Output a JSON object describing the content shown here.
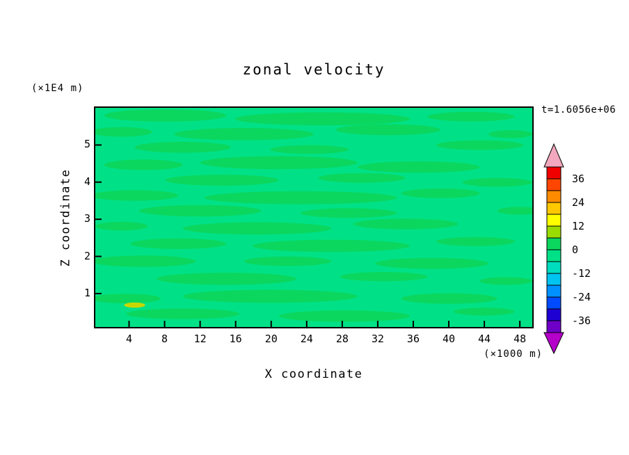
{
  "chart_data": {
    "type": "heatmap",
    "title": "zonal velocity",
    "time_label": "t=1.6056e+06",
    "xlabel": "X coordinate",
    "ylabel": "Z coordinate",
    "x_units": "(×1000 m)",
    "z_units": "(×1E4 m)",
    "x_ticks": [
      4,
      8,
      12,
      16,
      20,
      24,
      28,
      32,
      36,
      40,
      44,
      48
    ],
    "x_range": [
      0.2,
      49.4
    ],
    "z_ticks": [
      1,
      2,
      3,
      4,
      5
    ],
    "z_range": [
      0.1,
      6.0
    ],
    "field": {
      "summary": "Zonal velocity is near zero over the whole domain: broad background in the -6..0 band with elongated horizontal streaks in the 0..6 band, plus one small patch of roughly 12-18 near x=5 (×1000 m), z=0.6 (×1E4 m).",
      "base_band": [
        -6,
        0
      ],
      "base_color": "#00E187",
      "streak_band": [
        0,
        6
      ],
      "streak_color": "#0BD75F",
      "streaks": [
        [
          0.16,
          0.035,
          0.14,
          0.028
        ],
        [
          0.52,
          0.05,
          0.2,
          0.03
        ],
        [
          0.86,
          0.04,
          0.1,
          0.022
        ],
        [
          0.06,
          0.11,
          0.07,
          0.022
        ],
        [
          0.34,
          0.12,
          0.16,
          0.028
        ],
        [
          0.67,
          0.1,
          0.12,
          0.025
        ],
        [
          0.95,
          0.12,
          0.05,
          0.018
        ],
        [
          0.2,
          0.18,
          0.11,
          0.025
        ],
        [
          0.49,
          0.19,
          0.09,
          0.02
        ],
        [
          0.88,
          0.17,
          0.1,
          0.022
        ],
        [
          0.11,
          0.26,
          0.09,
          0.024
        ],
        [
          0.42,
          0.25,
          0.18,
          0.03
        ],
        [
          0.74,
          0.27,
          0.14,
          0.026
        ],
        [
          0.29,
          0.33,
          0.13,
          0.025
        ],
        [
          0.61,
          0.32,
          0.1,
          0.022
        ],
        [
          0.92,
          0.34,
          0.08,
          0.02
        ],
        [
          0.09,
          0.4,
          0.1,
          0.024
        ],
        [
          0.47,
          0.41,
          0.22,
          0.03
        ],
        [
          0.79,
          0.39,
          0.09,
          0.022
        ],
        [
          0.24,
          0.47,
          0.14,
          0.026
        ],
        [
          0.58,
          0.48,
          0.11,
          0.022
        ],
        [
          0.97,
          0.47,
          0.05,
          0.018
        ],
        [
          0.06,
          0.54,
          0.06,
          0.02
        ],
        [
          0.37,
          0.55,
          0.17,
          0.028
        ],
        [
          0.71,
          0.53,
          0.12,
          0.024
        ],
        [
          0.19,
          0.62,
          0.11,
          0.024
        ],
        [
          0.54,
          0.63,
          0.18,
          0.028
        ],
        [
          0.87,
          0.61,
          0.09,
          0.021
        ],
        [
          0.11,
          0.7,
          0.12,
          0.026
        ],
        [
          0.44,
          0.7,
          0.1,
          0.022
        ],
        [
          0.77,
          0.71,
          0.13,
          0.025
        ],
        [
          0.3,
          0.78,
          0.16,
          0.028
        ],
        [
          0.66,
          0.77,
          0.1,
          0.021
        ],
        [
          0.94,
          0.79,
          0.06,
          0.018
        ],
        [
          0.07,
          0.87,
          0.08,
          0.022
        ],
        [
          0.4,
          0.86,
          0.2,
          0.03
        ],
        [
          0.81,
          0.87,
          0.11,
          0.024
        ],
        [
          0.2,
          0.94,
          0.13,
          0.024
        ],
        [
          0.57,
          0.95,
          0.15,
          0.026
        ],
        [
          0.89,
          0.93,
          0.07,
          0.018
        ]
      ],
      "spots": [
        [
          0.09,
          0.9,
          0.024,
          0.012,
          "#C8D700"
        ]
      ]
    },
    "colorbar": {
      "labels": [
        36,
        24,
        12,
        0,
        -12,
        -24,
        -36
      ],
      "level_step": 6,
      "min": -42,
      "max": 42,
      "cells_top_to_bottom": [
        {
          "range": [
            36,
            42
          ],
          "color": "#F00000"
        },
        {
          "range": [
            30,
            36
          ],
          "color": "#FF4600"
        },
        {
          "range": [
            24,
            30
          ],
          "color": "#FF8C00"
        },
        {
          "range": [
            18,
            24
          ],
          "color": "#FFC800"
        },
        {
          "range": [
            12,
            18
          ],
          "color": "#FFFF00"
        },
        {
          "range": [
            6,
            12
          ],
          "color": "#9BDC00"
        },
        {
          "range": [
            0,
            6
          ],
          "color": "#0BD75F"
        },
        {
          "range": [
            -6,
            0
          ],
          "color": "#00E187"
        },
        {
          "range": [
            -12,
            -6
          ],
          "color": "#00DCBE"
        },
        {
          "range": [
            -18,
            -12
          ],
          "color": "#00C3F0"
        },
        {
          "range": [
            -24,
            -18
          ],
          "color": "#0091FF"
        },
        {
          "range": [
            -30,
            -24
          ],
          "color": "#004BFF"
        },
        {
          "range": [
            -36,
            -30
          ],
          "color": "#1E00D2"
        },
        {
          "range": [
            -42,
            -36
          ],
          "color": "#6E00C8"
        }
      ],
      "arrow_top_color": "#F2A8BE",
      "arrow_bottom_color": "#B400C8"
    }
  }
}
